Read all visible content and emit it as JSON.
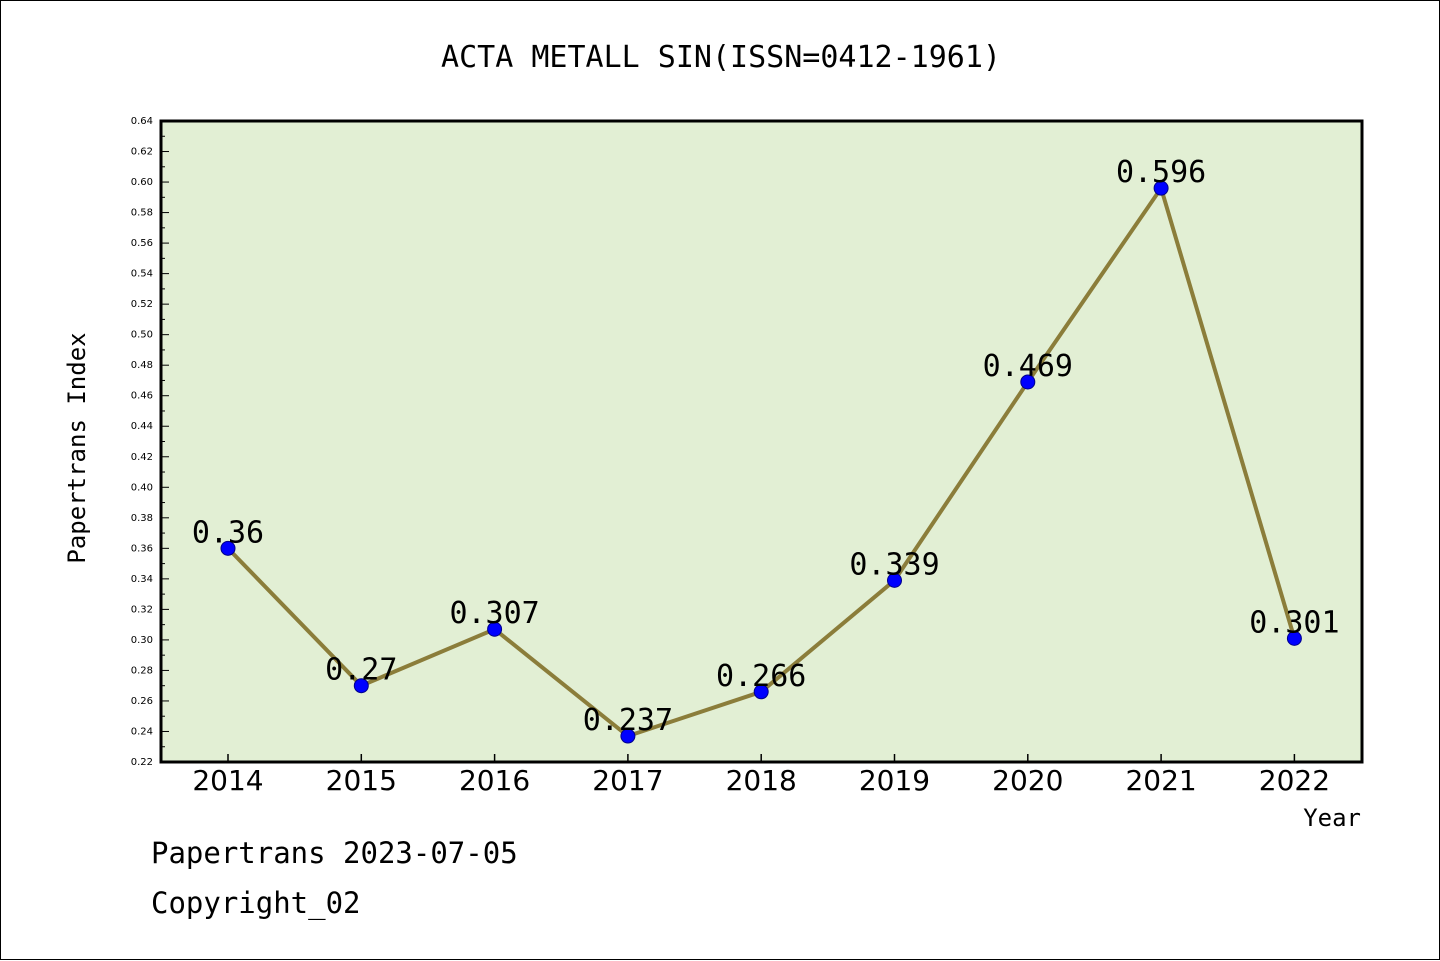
{
  "footer": {
    "line1": "Papertrans 2023-07-05",
    "line2": "Copyright_02"
  },
  "chart_data": {
    "type": "line",
    "title": "ACTA METALL SIN(ISSN=0412-1961)",
    "xlabel": "Year",
    "ylabel": "Papertrans Index",
    "categories": [
      "2014",
      "2015",
      "2016",
      "2017",
      "2018",
      "2019",
      "2020",
      "2021",
      "2022"
    ],
    "series": [
      {
        "values": [
          0.36,
          0.27,
          0.307,
          0.237,
          0.266,
          0.339,
          0.469,
          0.596,
          0.301
        ],
        "labels": [
          "0.36",
          "0.27",
          "0.307",
          "0.237",
          "0.266",
          "0.339",
          "0.469",
          "0.596",
          "0.301"
        ]
      }
    ],
    "ylim": [
      0.22,
      0.64
    ],
    "yticks": [
      "0.22",
      "0.24",
      "0.26",
      "0.28",
      "0.30",
      "0.32",
      "0.34",
      "0.36",
      "0.38",
      "0.40",
      "0.42",
      "0.44",
      "0.46",
      "0.48",
      "0.50",
      "0.52",
      "0.54",
      "0.56",
      "0.58",
      "0.60",
      "0.62",
      "0.64"
    ],
    "grid": false,
    "colors": {
      "plot_background": "#e2efd4",
      "line": "#8b7d3a",
      "marker": "#0000ff"
    }
  }
}
